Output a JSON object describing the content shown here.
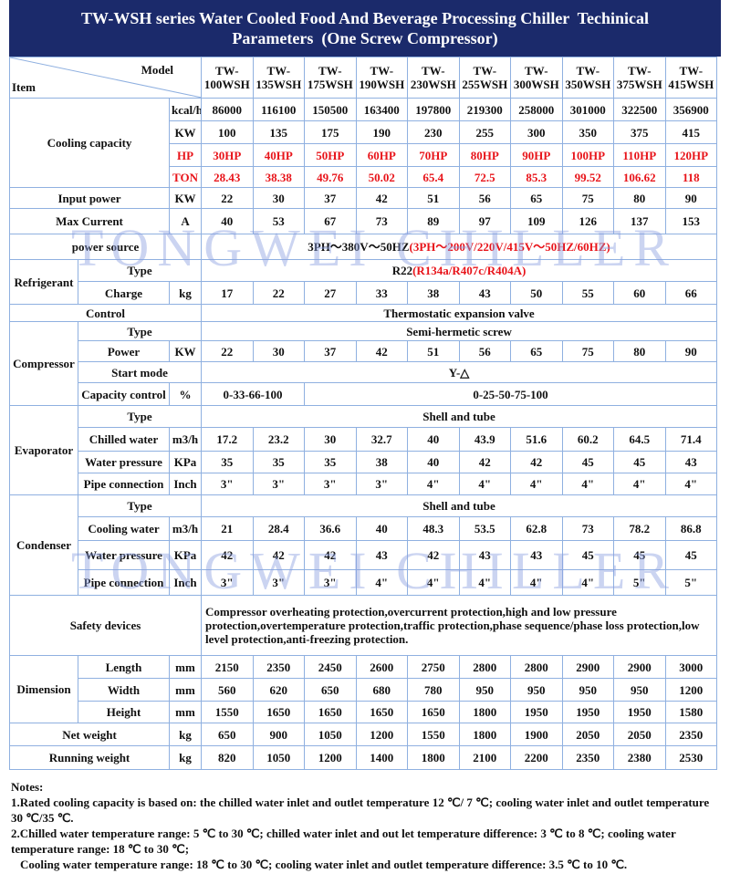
{
  "title": "TW-WSH series Water Cooled Food And Beverage Processing Chiller  Techinical Parameters  (One Screw Compressor)",
  "watermark": "TONGWEI CHILLER",
  "table": {
    "model_label": "Model",
    "item_label": "Item",
    "models": [
      "TW-\n100WSH",
      "TW-\n135WSH",
      "TW-\n175WSH",
      "TW-\n190WSH",
      "TW-\n230WSH",
      "TW-\n255WSH",
      "TW-\n300WSH",
      "TW-\n350WSH",
      "TW-\n375WSH",
      "TW-\n415WSH"
    ],
    "sections": [
      {
        "label": "Cooling capacity",
        "rows": [
          {
            "unit": "kcal/h",
            "values": [
              86000,
              116100,
              150500,
              163400,
              197800,
              219300,
              258000,
              301000,
              322500,
              356900
            ]
          },
          {
            "unit": "KW",
            "values": [
              100,
              135,
              175,
              190,
              230,
              255,
              300,
              350,
              375,
              415
            ]
          },
          {
            "unit": "HP",
            "color": "#e8141a",
            "values": [
              "30HP",
              "40HP",
              "50HP",
              "60HP",
              "70HP",
              "80HP",
              "90HP",
              "100HP",
              "110HP",
              "120HP"
            ]
          },
          {
            "unit": "TON",
            "color": "#e8141a",
            "values": [
              28.43,
              38.38,
              49.76,
              50.02,
              65.4,
              72.5,
              85.3,
              99.52,
              106.62,
              118
            ]
          }
        ]
      },
      {
        "label": "Input power",
        "unit": "KW",
        "values": [
          22,
          30,
          37,
          42,
          51,
          56,
          65,
          75,
          80,
          90
        ]
      },
      {
        "label": "Max Current",
        "unit": "A",
        "values": [
          40,
          53,
          67,
          73,
          89,
          97,
          109,
          126,
          137,
          153
        ]
      },
      {
        "label": "power source",
        "text": "3PH～380V～50HZ",
        "note": "(3PH～200V/220V/415V～50HZ/60HZ)"
      },
      {
        "label": "Refrigerant",
        "rows": [
          {
            "name": "Type",
            "text": "R22",
            "note": "(R134a/R407c/R404A)"
          },
          {
            "name": "Charge",
            "unit": "kg",
            "values": [
              17,
              22,
              27,
              33,
              38,
              43,
              50,
              55,
              60,
              66
            ]
          }
        ]
      },
      {
        "label": "Control",
        "text": "Thermostatic expansion valve"
      },
      {
        "label": "Compressor",
        "rows": [
          {
            "name": "Type",
            "text": "Semi-hermetic screw"
          },
          {
            "name": "Power",
            "unit": "KW",
            "values": [
              22,
              30,
              37,
              42,
              51,
              56,
              65,
              75,
              80,
              90
            ]
          },
          {
            "name": "Start mode",
            "text": "Y-△"
          },
          {
            "name": "Capacity control",
            "unit": "%",
            "first": "0-33-66-100",
            "text": "0-25-50-75-100"
          }
        ]
      },
      {
        "label": "Evaporator",
        "rows": [
          {
            "name": "Type",
            "text": "Shell and tube"
          },
          {
            "name": "Chilled water",
            "unit": "m3/h",
            "values": [
              17.2,
              23.2,
              30,
              32.7,
              40,
              43.9,
              51.6,
              60.2,
              64.5,
              71.4
            ]
          },
          {
            "name": "Water pressure",
            "unit": "KPa",
            "values": [
              35,
              35,
              35,
              38,
              40,
              42,
              42,
              45,
              45,
              43
            ]
          },
          {
            "name": "Pipe connection",
            "unit": "Inch",
            "values": [
              "3\"",
              "3\"",
              "3\"",
              "3\"",
              "4\"",
              "4\"",
              "4\"",
              "4\"",
              "4\"",
              "4\""
            ]
          }
        ]
      },
      {
        "label": "Condenser",
        "rows": [
          {
            "name": "Type",
            "text": "Shell and tube"
          },
          {
            "name": "Cooling water",
            "unit": "m3/h",
            "values": [
              21,
              28.4,
              36.6,
              40,
              48.3,
              53.5,
              62.8,
              73,
              78.2,
              86.8
            ]
          },
          {
            "name": "Water pressure",
            "unit": "KPa",
            "values": [
              42,
              42,
              42,
              43,
              42,
              43,
              43,
              45,
              45,
              45
            ]
          },
          {
            "name": "Pipe connection",
            "unit": "Inch",
            "values": [
              "3\"",
              "3\"",
              "3\"",
              "4\"",
              "4\"",
              "4\"",
              "4\"",
              "4\"",
              "5\"",
              "5\""
            ]
          }
        ]
      },
      {
        "label": "Safety devices",
        "text": "Compressor overheating protection,overcurrent protection,high and low pressure protection,overtemperature protection,traffic protection,phase sequence/phase loss protection,low level protection,anti-freezing protection."
      },
      {
        "label": "Dimension",
        "rows": [
          {
            "name": "Length",
            "unit": "mm",
            "values": [
              2150,
              2350,
              2450,
              2600,
              2750,
              2800,
              2800,
              2900,
              2900,
              3000
            ]
          },
          {
            "name": "Width",
            "unit": "mm",
            "values": [
              560,
              620,
              650,
              680,
              780,
              950,
              950,
              950,
              950,
              1200
            ]
          },
          {
            "name": "Height",
            "unit": "mm",
            "values": [
              1550,
              1650,
              1650,
              1650,
              1650,
              1800,
              1950,
              1950,
              1950,
              1580
            ]
          }
        ]
      },
      {
        "label": "Net weight",
        "unit": "kg",
        "values": [
          650,
          900,
          1050,
          1200,
          1550,
          1800,
          1900,
          2050,
          2050,
          2350
        ]
      },
      {
        "label": "Running weight",
        "unit": "kg",
        "values": [
          820,
          1050,
          1200,
          1400,
          1800,
          2100,
          2200,
          2350,
          2380,
          2530
        ]
      }
    ]
  },
  "notes": {
    "title": "Notes:",
    "items": [
      "1.Rated cooling capacity is based on: the chilled water inlet and outlet temperature 12 ℃/ 7 ℃; cooling water inlet and outlet temperature 30 ℃/35 ℃.",
      "2.Chilled water temperature range: 5 ℃ to 30 ℃; chilled water inlet and out let temperature difference: 3 ℃ to 8 ℃; cooling water temperature range: 18 ℃ to 30 ℃;",
      "Cooling water temperature range: 18 ℃ to 30 ℃; cooling water inlet and outlet temperature difference: 3.5 ℃ to 10 ℃."
    ]
  }
}
